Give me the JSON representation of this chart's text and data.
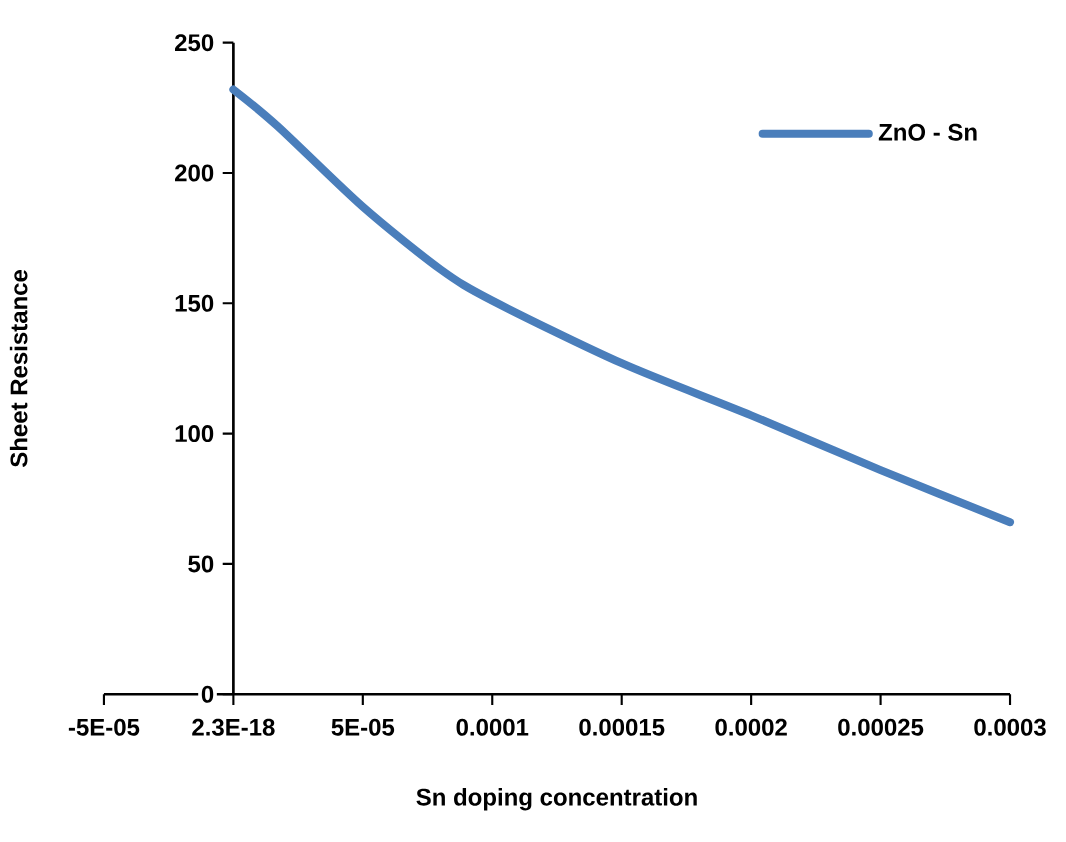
{
  "chart_data": {
    "type": "line",
    "xlabel": "Sn doping concentration",
    "ylabel": "Sheet Resistance",
    "x": [
      0,
      1.7e-05,
      5e-05,
      8e-05,
      0.0001,
      0.00015,
      0.0002,
      0.00025,
      0.0003
    ],
    "series": [
      {
        "name": "ZnO - Sn",
        "color": "#4a7ebb",
        "values": [
          232,
          218,
          187,
          163,
          151,
          127,
          107,
          86,
          66
        ]
      }
    ],
    "xlim": [
      -5e-05,
      0.0003
    ],
    "xticks": [
      {
        "value": -5e-05,
        "label": "-5E-05"
      },
      {
        "value": 0,
        "label": "2.3E-18"
      },
      {
        "value": 5e-05,
        "label": "5E-05"
      },
      {
        "value": 0.0001,
        "label": "0.0001"
      },
      {
        "value": 0.00015,
        "label": "0.00015"
      },
      {
        "value": 0.0002,
        "label": "0.0002"
      },
      {
        "value": 0.00025,
        "label": "0.00025"
      },
      {
        "value": 0.0003,
        "label": "0.0003"
      }
    ],
    "ylim": [
      0,
      250
    ],
    "yticks": [
      0,
      50,
      100,
      150,
      200,
      250
    ],
    "grid": false,
    "legend": "top right",
    "marker": "none",
    "line_style": "solid"
  }
}
